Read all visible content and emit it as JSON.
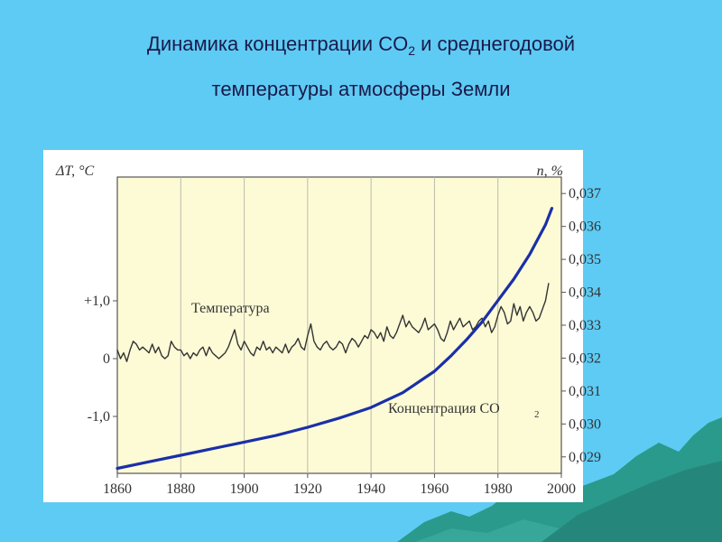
{
  "slide": {
    "title_line1_main": "Динамика концентрации CO",
    "title_line1_sub": "2",
    "title_line1_tail": " и среднегодовой",
    "title_line2": "температуры атмосферы Земли"
  },
  "colors": {
    "background": "#5ecbf4",
    "plot_fill": "#fdfbd6",
    "temperature_line": "#333333",
    "co2_line": "#1a2fa8",
    "mountains": "#2a9a8c"
  },
  "chart_data": {
    "type": "line",
    "title": "Динамика концентрации CO2 и среднегодовой температуры атмосферы Земли",
    "grid": "vertical",
    "x": {
      "label": "",
      "range": [
        1860,
        2000
      ],
      "ticks": [
        "1860",
        "1880",
        "1900",
        "1920",
        "1940",
        "1960",
        "1980",
        "2000"
      ]
    },
    "y_left": {
      "label": "ΔT, °C",
      "ticks": [
        {
          "value": 1.0,
          "label": "+1,0"
        },
        {
          "value": 0,
          "label": "0"
        },
        {
          "value": -1.0,
          "label": "-1,0"
        }
      ]
    },
    "y_right": {
      "label": "n, %",
      "range": [
        0.0285,
        0.0375
      ],
      "ticks": [
        "0,037",
        "0,036",
        "0,035",
        "0,034",
        "0,033",
        "0,032",
        "0,031",
        "0,030",
        "0,029"
      ]
    },
    "series": [
      {
        "name": "Температура",
        "axis": "left",
        "x": [
          1860,
          1861,
          1862,
          1863,
          1864,
          1865,
          1866,
          1867,
          1868,
          1869,
          1870,
          1871,
          1872,
          1873,
          1874,
          1875,
          1876,
          1877,
          1878,
          1879,
          1880,
          1881,
          1882,
          1883,
          1884,
          1885,
          1886,
          1887,
          1888,
          1889,
          1890,
          1891,
          1892,
          1893,
          1894,
          1895,
          1896,
          1897,
          1898,
          1899,
          1900,
          1901,
          1902,
          1903,
          1904,
          1905,
          1906,
          1907,
          1908,
          1909,
          1910,
          1911,
          1912,
          1913,
          1914,
          1915,
          1916,
          1917,
          1918,
          1919,
          1920,
          1921,
          1922,
          1923,
          1924,
          1925,
          1926,
          1927,
          1928,
          1929,
          1930,
          1931,
          1932,
          1933,
          1934,
          1935,
          1936,
          1937,
          1938,
          1939,
          1940,
          1941,
          1942,
          1943,
          1944,
          1945,
          1946,
          1947,
          1948,
          1949,
          1950,
          1951,
          1952,
          1953,
          1954,
          1955,
          1956,
          1957,
          1958,
          1959,
          1960,
          1961,
          1962,
          1963,
          1964,
          1965,
          1966,
          1967,
          1968,
          1969,
          1970,
          1971,
          1972,
          1973,
          1974,
          1975,
          1976,
          1977,
          1978,
          1979,
          1980,
          1981,
          1982,
          1983,
          1984,
          1985,
          1986,
          1987,
          1988,
          1989,
          1990,
          1991,
          1992,
          1993,
          1994,
          1995,
          1996
        ],
        "values": [
          0.15,
          0.0,
          0.1,
          -0.05,
          0.15,
          0.3,
          0.25,
          0.15,
          0.2,
          0.15,
          0.1,
          0.25,
          0.1,
          0.2,
          0.05,
          0.0,
          0.05,
          0.3,
          0.2,
          0.15,
          0.15,
          0.05,
          0.1,
          0.0,
          0.1,
          0.05,
          0.15,
          0.2,
          0.05,
          0.2,
          0.1,
          0.05,
          0.0,
          0.05,
          0.1,
          0.2,
          0.35,
          0.5,
          0.25,
          0.15,
          0.3,
          0.2,
          0.1,
          0.05,
          0.2,
          0.15,
          0.3,
          0.15,
          0.2,
          0.1,
          0.2,
          0.15,
          0.1,
          0.25,
          0.1,
          0.2,
          0.25,
          0.35,
          0.2,
          0.15,
          0.4,
          0.6,
          0.3,
          0.2,
          0.15,
          0.25,
          0.3,
          0.2,
          0.15,
          0.2,
          0.3,
          0.25,
          0.1,
          0.25,
          0.35,
          0.3,
          0.2,
          0.3,
          0.4,
          0.35,
          0.5,
          0.45,
          0.35,
          0.45,
          0.3,
          0.55,
          0.4,
          0.35,
          0.45,
          0.6,
          0.75,
          0.55,
          0.65,
          0.55,
          0.5,
          0.45,
          0.55,
          0.7,
          0.5,
          0.55,
          0.6,
          0.5,
          0.35,
          0.3,
          0.45,
          0.65,
          0.5,
          0.6,
          0.7,
          0.55,
          0.6,
          0.65,
          0.5,
          0.55,
          0.65,
          0.7,
          0.55,
          0.65,
          0.45,
          0.55,
          0.75,
          0.9,
          0.8,
          0.6,
          0.65,
          0.95,
          0.75,
          0.9,
          0.65,
          0.8,
          0.9,
          0.8,
          0.65,
          0.7,
          0.85,
          1.0,
          1.3
        ]
      },
      {
        "name": "Концентрация CO2",
        "axis": "right",
        "x": [
          1860,
          1870,
          1880,
          1890,
          1900,
          1910,
          1920,
          1930,
          1940,
          1950,
          1960,
          1965,
          1970,
          1975,
          1980,
          1985,
          1990,
          1995,
          1997
        ],
        "values": [
          0.02865,
          0.02885,
          0.02905,
          0.02925,
          0.02945,
          0.02965,
          0.0299,
          0.03018,
          0.0305,
          0.03095,
          0.0316,
          0.03205,
          0.03255,
          0.0331,
          0.03375,
          0.0344,
          0.03515,
          0.03605,
          0.03655
        ]
      }
    ],
    "annotations": [
      {
        "text": "Температура",
        "series": "Температура"
      },
      {
        "text": "Концентрация СО",
        "sub": "2",
        "series": "Концентрация CO2"
      }
    ]
  }
}
